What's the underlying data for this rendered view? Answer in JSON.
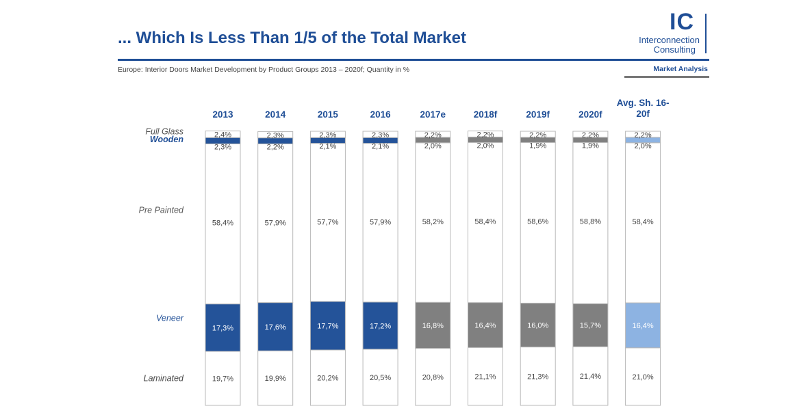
{
  "header": {
    "title": "... Which Is Less Than 1/5 of the Total Market",
    "subtitle": "Europe: Interior Doors Market Development by Product Groups  2013 – 2020f; Quantity in %",
    "logo_mark": "IC",
    "logo_line1": "Interconnection",
    "logo_line2": "Consulting",
    "section_tag": "Market Analysis"
  },
  "colors": {
    "dark_blue": "#245399",
    "gray": "#808080",
    "light_blue": "#8db3e2",
    "text_blue": "#1f4e96"
  },
  "chart_data": {
    "type": "bar",
    "stacked": true,
    "orientation": "vertical",
    "categories": [
      "2013",
      "2014",
      "2015",
      "2016",
      "2017e",
      "2018f",
      "2019f",
      "2020f",
      "Avg. Sh. 16-20f"
    ],
    "bar_colors": [
      "#245399",
      "#245399",
      "#245399",
      "#245399",
      "#808080",
      "#808080",
      "#808080",
      "#808080",
      "#8db3e2"
    ],
    "series": [
      {
        "name": "Laminated",
        "values": [
          19.7,
          19.9,
          20.2,
          20.5,
          20.8,
          21.1,
          21.3,
          21.4,
          21.0
        ],
        "labels": [
          "19,7%",
          "19,9%",
          "20,2%",
          "20,5%",
          "20,8%",
          "21,1%",
          "21,3%",
          "21,4%",
          "21,0%"
        ],
        "highlight": false
      },
      {
        "name": "Veneer",
        "values": [
          17.3,
          17.6,
          17.7,
          17.2,
          16.8,
          16.4,
          16.0,
          15.7,
          16.4
        ],
        "labels": [
          "17,3%",
          "17,6%",
          "17,7%",
          "17,2%",
          "16,8%",
          "16,4%",
          "16,0%",
          "15,7%",
          "16,4%"
        ],
        "highlight": true
      },
      {
        "name": "Pre Painted",
        "values": [
          58.4,
          57.9,
          57.7,
          57.9,
          58.2,
          58.4,
          58.6,
          58.8,
          58.4
        ],
        "labels": [
          "58,4%",
          "57,9%",
          "57,7%",
          "57,9%",
          "58,2%",
          "58,4%",
          "58,6%",
          "58,8%",
          "58,4%"
        ],
        "highlight": false
      },
      {
        "name": "Wooden",
        "values": [
          2.3,
          2.2,
          2.1,
          2.1,
          2.0,
          2.0,
          1.9,
          1.9,
          2.0
        ],
        "labels": [
          "2,3%",
          "2,2%",
          "2,1%",
          "2,1%",
          "2,0%",
          "2,0%",
          "1,9%",
          "1,9%",
          "2,0%"
        ],
        "highlight": true
      },
      {
        "name": "Full Glass",
        "values": [
          2.4,
          2.3,
          2.3,
          2.3,
          2.2,
          2.2,
          2.2,
          2.2,
          2.2
        ],
        "labels": [
          "2,4%",
          "2,3%",
          "2,3%",
          "2,3%",
          "2,2%",
          "2,2%",
          "2,2%",
          "2,2%",
          "2,2%"
        ],
        "highlight": false
      }
    ],
    "series_label_colors": [
      "#444444",
      "#1f4e96",
      "#555555",
      "#1f4e96",
      "#555555"
    ],
    "ylim": [
      0,
      100
    ],
    "legend": "left",
    "grid": false
  }
}
